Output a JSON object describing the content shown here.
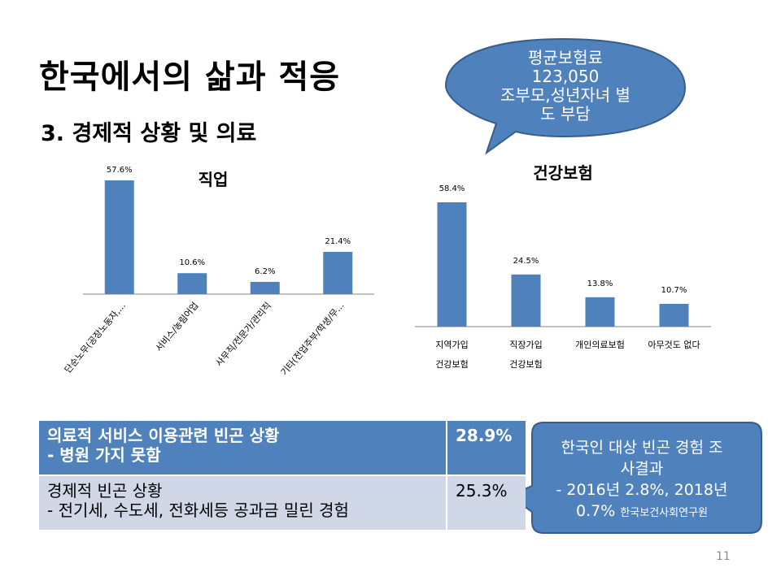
{
  "slide": {
    "title": "한국에서의 삶과 적응",
    "subtitle": "3. 경제적 상황 및 의료",
    "page_number": "11"
  },
  "callout_top": {
    "lines": [
      "평균보험료",
      "123,050",
      "조부모,성년자녀 별",
      "도 부담"
    ]
  },
  "callout_bottom": {
    "line1": "한국인 대상 빈곤 경험 조",
    "line2": "사결과",
    "line3": "- 2016년 2.8%, 2018년",
    "line4_main": "0.7%",
    "line4_small": "한국보건사회연구원"
  },
  "table": {
    "rows": [
      {
        "label_line1": "의료적 서비스 이용관련 빈곤 상황",
        "label_line2": "- 병원 가지 못함",
        "value": "28.9%"
      },
      {
        "label_line1": "경제적 빈곤 상황",
        "label_line2": "- 전기세, 수도세, 전화세등 공과금 밀린 경험",
        "value": "25.3%"
      }
    ]
  },
  "colors": {
    "bar": "#4f81bd",
    "bubble": "#4f81bd",
    "table_header": "#4f81bd",
    "table_row": "#d0d8e8"
  },
  "chart_data": [
    {
      "type": "bar",
      "title": "직업",
      "categories": [
        "단순노무(공장노동자,...",
        "서비스/농림어업",
        "사무직/전문가/관리직",
        "기타(전업주부/학생/무..."
      ],
      "values": [
        57.6,
        10.6,
        6.2,
        21.4
      ],
      "data_labels": [
        "57.6%",
        "10.6%",
        "6.2%",
        "21.4%"
      ],
      "ylim": [
        0,
        60
      ],
      "grid": false,
      "legend": "none"
    },
    {
      "type": "bar",
      "title": "건강보험",
      "categories": [
        [
          "지역가입",
          "건강보험"
        ],
        [
          "직장가입",
          "건강보험"
        ],
        [
          "개인의료보험"
        ],
        [
          "아무것도 없다"
        ]
      ],
      "values": [
        58.4,
        24.5,
        13.8,
        10.7
      ],
      "data_labels": [
        "58.4%",
        "24.5%",
        "13.8%",
        "10.7%"
      ],
      "ylim": [
        0,
        60
      ],
      "grid": false,
      "legend": "none"
    }
  ]
}
